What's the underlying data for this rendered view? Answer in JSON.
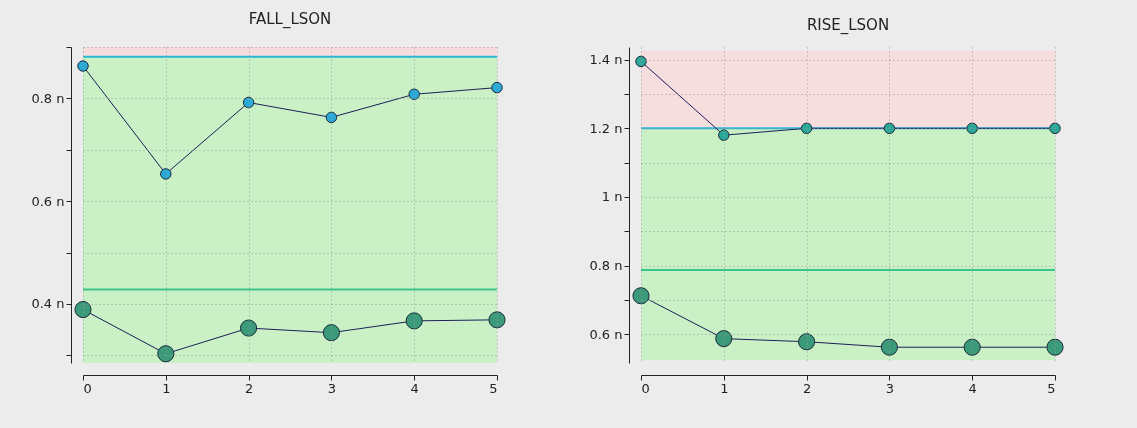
{
  "chart_data": [
    {
      "type": "line",
      "title": "FALL_LSON",
      "x": [
        0,
        1,
        2,
        3,
        4,
        5
      ],
      "xlim": [
        0,
        5
      ],
      "xticks": [
        0,
        1,
        2,
        3,
        4,
        5
      ],
      "ylim": [
        0.285,
        0.9
      ],
      "yticks": [
        {
          "value": 0.3,
          "label": null
        },
        {
          "value": 0.4,
          "label": "0.4 n"
        },
        {
          "value": 0.5,
          "label": null
        },
        {
          "value": 0.6,
          "label": "0.6 n"
        },
        {
          "value": 0.7,
          "label": null
        },
        {
          "value": 0.8,
          "label": "0.8 n"
        },
        {
          "value": 0.9,
          "label": null
        }
      ],
      "series": [
        {
          "color": "#29a9d8",
          "values": [
            0.863,
            0.653,
            0.792,
            0.763,
            0.808,
            0.821
          ]
        },
        {
          "color": "#3a9a7a",
          "values": [
            0.389,
            0.303,
            0.353,
            0.344,
            0.367,
            0.369
          ]
        }
      ],
      "bands": [
        {
          "axis": "y",
          "from": 0.881,
          "to": 0.9,
          "color": "#f6dede"
        },
        {
          "axis": "y",
          "from": 0.285,
          "to": 0.881,
          "color": "#c9f1c5"
        }
      ],
      "ref_lines": [
        {
          "axis": "y",
          "value": 0.881,
          "color": "#2ab6d6"
        },
        {
          "axis": "y",
          "value": 0.428,
          "color": "#3cc48a"
        }
      ],
      "grid": true,
      "marker": "circle",
      "line_style": "solid"
    },
    {
      "type": "line",
      "title": "RISE_LSON",
      "x": [
        0,
        1,
        2,
        3,
        4,
        5
      ],
      "xlim": [
        0,
        5
      ],
      "xticks": [
        0,
        1,
        2,
        3,
        4,
        5
      ],
      "ylim": [
        0.516,
        1.437
      ],
      "yticks": [
        {
          "value": 0.6,
          "label": "0.6 n"
        },
        {
          "value": 0.7,
          "label": null
        },
        {
          "value": 0.8,
          "label": "0.8 n"
        },
        {
          "value": 0.9,
          "label": null
        },
        {
          "value": 1,
          "label": "1 n"
        },
        {
          "value": 1.1,
          "label": null
        },
        {
          "value": 1.2,
          "label": "1.2 n"
        },
        {
          "value": 1.3,
          "label": null
        },
        {
          "value": 1.4,
          "label": "1.4 n"
        }
      ],
      "series": [
        {
          "color": "#2aa89a",
          "values": [
            1.395,
            1.18,
            1.2,
            1.2,
            1.2,
            1.2
          ]
        },
        {
          "color": "#3a9a7a",
          "values": [
            0.712,
            0.587,
            0.578,
            0.562,
            0.562,
            0.562
          ]
        }
      ],
      "bands": [
        {
          "axis": "y",
          "from": 1.2,
          "to": 1.427,
          "color": "#f6dede"
        },
        {
          "axis": "y",
          "from": 0.524,
          "to": 1.2,
          "color": "#c9f1c5"
        }
      ],
      "ref_lines": [
        {
          "axis": "y",
          "value": 1.2,
          "color": "#2ab6d6"
        },
        {
          "axis": "y",
          "value": 0.787,
          "color": "#3cc48a"
        }
      ],
      "grid": true,
      "marker": "circle",
      "line_style": "solid"
    }
  ]
}
